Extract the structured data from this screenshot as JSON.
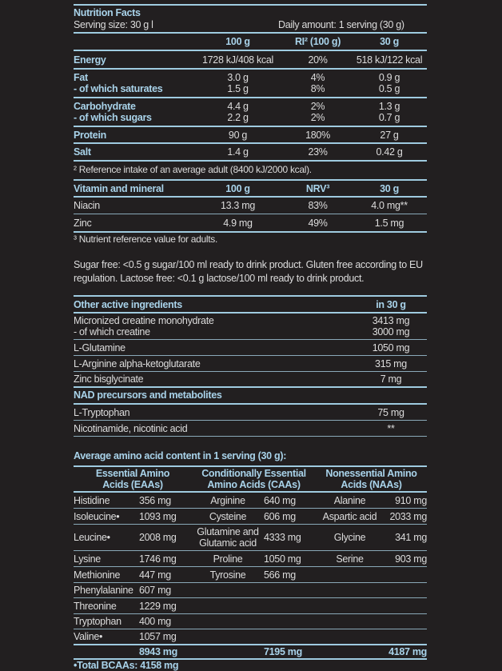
{
  "title": "Nutrition Facts",
  "serving_size": "Serving size: 30 g l",
  "daily_amount": "Daily amount: 1 serving (30 g)",
  "nutrition": {
    "header": [
      "",
      "100 g",
      "RI² (100 g)",
      "30 g"
    ],
    "groups": [
      [
        [
          "Energy",
          "1728 kJ/408 kcal",
          "20%",
          "518 kJ/122 kcal"
        ]
      ],
      [
        [
          "Fat",
          "3.0 g",
          "4%",
          "0.9 g"
        ],
        [
          "- of which saturates",
          "1.5 g",
          "8%",
          "0.5 g"
        ]
      ],
      [
        [
          "Carbohydrate",
          "4.4 g",
          "2%",
          "1.3 g"
        ],
        [
          "- of which sugars",
          "2.2 g",
          "2%",
          "0.7 g"
        ]
      ],
      [
        [
          "Protein",
          "90 g",
          "180%",
          "27 g"
        ]
      ],
      [
        [
          "Salt",
          "1.4 g",
          "23%",
          "0.42 g"
        ]
      ]
    ],
    "footnote": "² Reference intake of an average adult (8400 kJ/2000 kcal)."
  },
  "vitamins": {
    "header": [
      "Vitamin and mineral",
      "100 g",
      "NRV³",
      "30 g"
    ],
    "rows": [
      [
        "Niacin",
        "13.3 mg",
        "83%",
        "4.0 mg**"
      ],
      [
        "Zinc",
        "4.9 mg",
        "49%",
        "1.5 mg"
      ]
    ],
    "footnote": "³ Nutrient reference value for adults."
  },
  "statement": [
    "Sugar free: <0.5 g sugar/100 ml ready to drink product. Gluten free according to EU",
    "regulation. Lactose free: <0.1 g lactose/100 ml ready to drink product."
  ],
  "other": {
    "header": [
      "Other active ingredients",
      "in 30 g"
    ],
    "rows": [
      {
        "label": [
          "Micronized creatine monohydrate",
          "- of which creatine"
        ],
        "value": [
          "3413 mg",
          "3000 mg"
        ]
      },
      {
        "label": [
          "L-Glutamine"
        ],
        "value": [
          "1050 mg"
        ]
      },
      {
        "label": [
          "L-Arginine alpha-ketoglutarate"
        ],
        "value": [
          "315 mg"
        ]
      },
      {
        "label": [
          "Zinc bisglycinate"
        ],
        "value": [
          "7 mg"
        ]
      },
      {
        "label": [
          "NAD precursors and metabolites"
        ],
        "value": [
          ""
        ],
        "heading": true
      },
      {
        "label": [
          "L-Tryptophan"
        ],
        "value": [
          "75 mg"
        ]
      },
      {
        "label": [
          "Nicotinamide, nicotinic acid"
        ],
        "value": [
          "**"
        ]
      }
    ]
  },
  "amino": {
    "title": "Average amino acid content in 1 serving (30 g):",
    "headers": [
      [
        "Essential Amino",
        "Acids (EAAs)"
      ],
      [
        "Conditionally Essential",
        "Amino Acids (CAAs)"
      ],
      [
        "Nonessential Amino",
        "Acids (NAAs)"
      ]
    ],
    "rows": [
      [
        [
          "Histidine"
        ],
        "356 mg",
        [
          "Arginine"
        ],
        "640 mg",
        [
          "Alanine"
        ],
        "910 mg"
      ],
      [
        [
          "Isoleucine•"
        ],
        "1093 mg",
        [
          "Cysteine"
        ],
        "606 mg",
        [
          "Aspartic acid"
        ],
        "2033 mg"
      ],
      [
        [
          "Leucine•"
        ],
        "2008 mg",
        [
          "Glutamine and",
          "Glutamic acid"
        ],
        "4333 mg",
        [
          "Glycine"
        ],
        "341 mg"
      ],
      [
        [
          "Lysine"
        ],
        "1746 mg",
        [
          "Proline"
        ],
        "1050 mg",
        [
          "Serine"
        ],
        "903 mg"
      ],
      [
        [
          "Methionine"
        ],
        "447 mg",
        [
          "Tyrosine"
        ],
        "566 mg",
        [
          ""
        ],
        ""
      ],
      [
        [
          "Phenylalanine"
        ],
        "607 mg",
        [
          ""
        ],
        "",
        [
          ""
        ],
        ""
      ],
      [
        [
          "Threonine"
        ],
        "1229 mg",
        [
          ""
        ],
        "",
        [
          ""
        ],
        ""
      ],
      [
        [
          "Tryptophan"
        ],
        "400 mg",
        [
          ""
        ],
        "",
        [
          ""
        ],
        ""
      ],
      [
        [
          "Valine•"
        ],
        "1057 mg",
        [
          ""
        ],
        "",
        [
          ""
        ],
        ""
      ]
    ],
    "totals": [
      "8943 mg",
      "7195 mg",
      "4187 mg"
    ],
    "bcaa": "•Total BCAAs: 4158 mg"
  },
  "colors": {
    "background": "#221f20",
    "heading": "#a9d3ea",
    "rule": "#9fcbe0"
  }
}
